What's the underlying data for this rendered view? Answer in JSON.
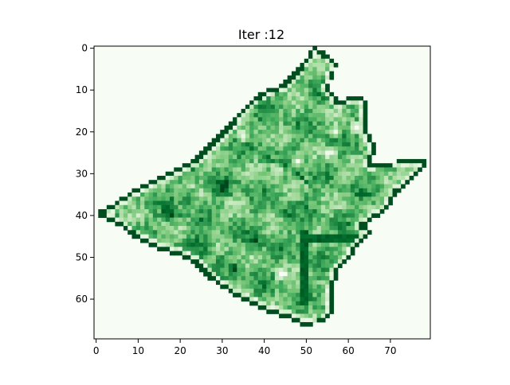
{
  "chart_data": {
    "type": "heatmap",
    "title": "Iter :12",
    "xlabel": "",
    "ylabel": "",
    "colormap": "Greens",
    "colors": {
      "low": "#f7fcf5",
      "high": "#00441b",
      "background": "#f7fcf5"
    },
    "grid": false,
    "legend": "none",
    "n_cols": 80,
    "n_rows": 70,
    "xlim": [
      -0.5,
      79.5
    ],
    "ylim": [
      69.5,
      -0.5
    ],
    "x_ticks": [
      0,
      10,
      20,
      30,
      40,
      50,
      60,
      70
    ],
    "y_ticks": [
      0,
      10,
      20,
      30,
      40,
      50,
      60
    ],
    "shape_outline": [
      [
        52,
        0
      ],
      [
        54,
        1
      ],
      [
        58,
        4
      ],
      [
        56,
        10
      ],
      [
        58,
        13
      ],
      [
        63,
        12
      ],
      [
        65,
        13
      ],
      [
        65,
        20
      ],
      [
        67,
        24
      ],
      [
        66,
        28
      ],
      [
        78,
        27
      ],
      [
        80,
        28
      ],
      [
        76,
        32
      ],
      [
        72,
        35
      ],
      [
        70,
        39
      ],
      [
        64,
        43
      ],
      [
        67,
        44
      ],
      [
        62,
        49
      ],
      [
        60,
        52
      ],
      [
        58,
        54
      ],
      [
        57,
        58
      ],
      [
        57,
        64
      ],
      [
        55,
        66
      ],
      [
        50,
        67
      ],
      [
        46,
        65
      ],
      [
        40,
        63
      ],
      [
        34,
        60
      ],
      [
        28,
        56
      ],
      [
        24,
        52
      ],
      [
        20,
        50
      ],
      [
        14,
        48
      ],
      [
        10,
        46
      ],
      [
        6,
        43
      ],
      [
        0,
        40
      ],
      [
        4,
        38
      ],
      [
        10,
        34
      ],
      [
        16,
        31
      ],
      [
        20,
        29
      ],
      [
        24,
        27
      ],
      [
        26,
        25
      ],
      [
        28,
        23
      ],
      [
        32,
        19
      ],
      [
        36,
        14
      ],
      [
        40,
        11
      ],
      [
        45,
        9
      ],
      [
        48,
        6
      ],
      [
        51,
        2
      ]
    ],
    "inner_edges": [
      [
        [
          50,
          44
        ],
        [
          50,
          62
        ]
      ],
      [
        [
          51,
          46
        ],
        [
          66,
          46
        ]
      ],
      [
        [
          48,
          30
        ],
        [
          51,
          33
        ]
      ],
      [
        [
          60,
          12
        ],
        [
          63,
          12
        ]
      ]
    ],
    "light_patches": [
      [
        33,
        17,
        3
      ],
      [
        48,
        27,
        2
      ],
      [
        56,
        25,
        2
      ],
      [
        43,
        29,
        2
      ],
      [
        62,
        19,
        2
      ],
      [
        44,
        54,
        2
      ],
      [
        35,
        21,
        2
      ],
      [
        57,
        20,
        2
      ]
    ],
    "dark_patches": [
      [
        25,
        47,
        4
      ],
      [
        30,
        34,
        3
      ],
      [
        22,
        36,
        3
      ],
      [
        38,
        46,
        3
      ],
      [
        45,
        40,
        2
      ],
      [
        18,
        40,
        3
      ],
      [
        40,
        26,
        2
      ],
      [
        33,
        53,
        2
      ]
    ]
  }
}
